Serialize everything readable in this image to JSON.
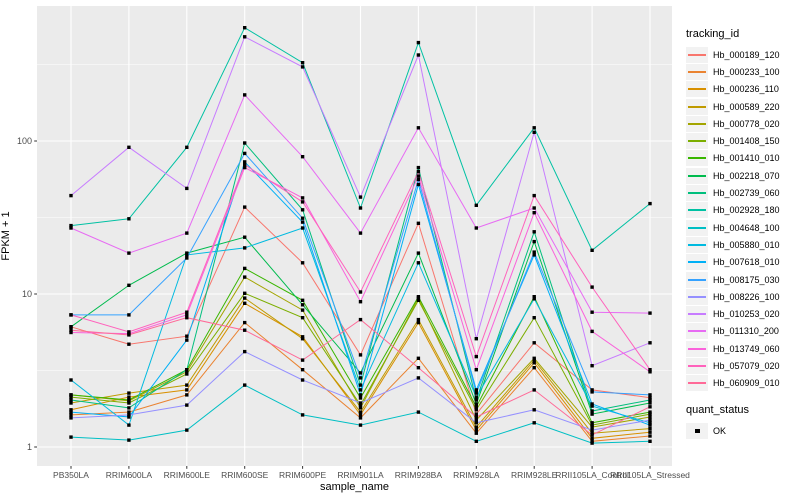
{
  "chart_data": {
    "type": "line",
    "title": "",
    "xlabel": "sample_name",
    "ylabel": "FPKM + 1",
    "y_scale": "log10",
    "ylim": [
      0.72,
      740
    ],
    "y_ticks": [
      1,
      10,
      100
    ],
    "y_tick_labels": [
      "1",
      "10",
      "100"
    ],
    "y_minor_ticks": [
      3.162,
      31.62,
      316.2
    ],
    "grid": true,
    "legend_position": "right",
    "legend_title": "tracking_id",
    "quant_legend": {
      "title": "quant_status",
      "items": [
        "OK"
      ]
    },
    "point_shape": "filled-black-square",
    "categories": [
      "PB350LA",
      "RRIM600LA",
      "RRIM600LE",
      "RRIM600SE",
      "RRIM600PE",
      "RRIM901LA",
      "RRIM928BA",
      "RRIM928LA",
      "RRIM928LE",
      "RRII105LA_Control",
      "RRII105LA_Stressed"
    ],
    "series": [
      {
        "name": "Hb_000189_120",
        "color": "#F8766D",
        "values": [
          6.1,
          4.7,
          5.3,
          37,
          16,
          4.0,
          29,
          1.64,
          4.8,
          2.36,
          2.1
        ]
      },
      {
        "name": "Hb_000233_100",
        "color": "#EA8331",
        "values": [
          1.62,
          1.69,
          2.19,
          6.5,
          3.2,
          1.55,
          3.8,
          1.23,
          3.3,
          1.09,
          1.18
        ]
      },
      {
        "name": "Hb_000236_110",
        "color": "#D89000",
        "values": [
          1.75,
          2.12,
          2.36,
          8.7,
          5.25,
          1.62,
          6.5,
          1.29,
          3.55,
          1.14,
          1.25
        ]
      },
      {
        "name": "Hb_000589_220",
        "color": "#C09B00",
        "values": [
          1.94,
          2.25,
          2.54,
          9.4,
          5.1,
          1.69,
          6.8,
          1.35,
          3.7,
          1.23,
          1.32
        ]
      },
      {
        "name": "Hb_000778_020",
        "color": "#A3A500",
        "values": [
          2.19,
          2.0,
          3.1,
          12.9,
          7.85,
          1.8,
          9.4,
          1.5,
          3.8,
          1.35,
          1.57
        ]
      },
      {
        "name": "Hb_001408_150",
        "color": "#7CAE00",
        "values": [
          2.12,
          1.94,
          3.0,
          10.1,
          7.0,
          1.88,
          9.1,
          1.75,
          7.0,
          1.39,
          1.64
        ]
      },
      {
        "name": "Hb_001410_010",
        "color": "#39B600",
        "values": [
          2.19,
          2.03,
          3.2,
          14.7,
          9.1,
          2.09,
          9.6,
          1.83,
          9.6,
          1.44,
          1.69
        ]
      },
      {
        "name": "Hb_002218_070",
        "color": "#00BB4E",
        "values": [
          6.1,
          11.4,
          18.5,
          23.5,
          8.5,
          3.05,
          18.5,
          1.91,
          22,
          1.64,
          1.94
        ]
      },
      {
        "name": "Hb_002739_060",
        "color": "#00BF7D",
        "values": [
          2.03,
          1.8,
          3.2,
          97,
          35.5,
          2.54,
          67,
          2.03,
          25.5,
          1.72,
          2.03
        ]
      },
      {
        "name": "Hb_002928_180",
        "color": "#00C1A3",
        "values": [
          28,
          31,
          91,
          550,
          325,
          36.5,
          440,
          38,
          122,
          19.3,
          39
        ]
      },
      {
        "name": "Hb_004648_100",
        "color": "#00BFC4",
        "values": [
          1.16,
          1.11,
          1.29,
          2.54,
          1.62,
          1.39,
          1.69,
          1.09,
          1.44,
          1.06,
          1.09
        ]
      },
      {
        "name": "Hb_005880_010",
        "color": "#00BAE0",
        "values": [
          2.74,
          1.39,
          18,
          20,
          27,
          2.36,
          16,
          2.12,
          9.3,
          1.85,
          1.44
        ]
      },
      {
        "name": "Hb_007618_010",
        "color": "#00B0F6",
        "values": [
          1.69,
          1.57,
          5.0,
          73,
          29.5,
          2.19,
          52,
          2.36,
          18,
          1.91,
          1.39
        ]
      },
      {
        "name": "Hb_008175_030",
        "color": "#35A2FF",
        "values": [
          7.3,
          7.3,
          17.2,
          83,
          31.3,
          2.83,
          56,
          2.25,
          18.8,
          2.29,
          2.19
        ]
      },
      {
        "name": "Hb_008226_100",
        "color": "#9590FF",
        "values": [
          1.55,
          1.62,
          1.88,
          4.2,
          2.74,
          1.94,
          2.83,
          1.44,
          1.75,
          1.29,
          1.5
        ]
      },
      {
        "name": "Hb_010253_020",
        "color": "#C77CFF",
        "values": [
          44,
          91,
          49,
          480,
          305,
          43,
          365,
          5.1,
          114,
          3.4,
          4.8
        ]
      },
      {
        "name": "Hb_011310_200",
        "color": "#E76BF3",
        "values": [
          27,
          18.5,
          25,
          200,
          79,
          25,
          122,
          27,
          36.5,
          7.6,
          7.5
        ]
      },
      {
        "name": "Hb_013749_060",
        "color": "#FA62DB",
        "values": [
          5.6,
          5.5,
          7.3,
          67,
          42.5,
          8.9,
          59,
          3.2,
          34,
          5.7,
          3.1
        ]
      },
      {
        "name": "Hb_057079_020",
        "color": "#FF62BC",
        "values": [
          7.3,
          5.65,
          7.6,
          70,
          40,
          10.3,
          63,
          3.9,
          44,
          11.1,
          3.2
        ]
      },
      {
        "name": "Hb_060909_010",
        "color": "#FF6A98",
        "values": [
          5.8,
          5.4,
          7.0,
          5.8,
          3.7,
          6.8,
          3.3,
          1.57,
          2.36,
          1.2,
          1.83
        ]
      }
    ]
  },
  "colors": {
    "panel_background": "#EBEBEB",
    "gridline": "#FFFFFF",
    "point": "#000000",
    "axis_text": "#4D4D4D",
    "tick_mark": "#333333",
    "legend_key_background": "#F2F2F2"
  }
}
